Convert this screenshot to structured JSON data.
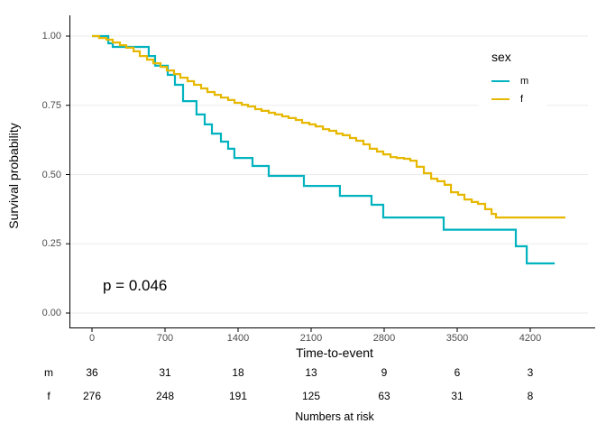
{
  "chart_data": {
    "type": "line",
    "subtype": "kaplan-meier-step-curves",
    "title": "",
    "xlabel": "Time-to-event",
    "ylabel": "Survival probability",
    "p_value_label": "p = 0.046",
    "xlim": [
      -130,
      4800
    ],
    "ylim": [
      0,
      1.0
    ],
    "grid": "horizontal-major-only",
    "gridline_color": "#ebebeb",
    "axis_line_color": "#000000",
    "tick_text_color": "#4d4d4d",
    "x_ticks": [
      {
        "value": 0,
        "label": "0"
      },
      {
        "value": 700,
        "label": "700"
      },
      {
        "value": 1400,
        "label": "1400"
      },
      {
        "value": 2100,
        "label": "2100"
      },
      {
        "value": 2800,
        "label": "2800"
      },
      {
        "value": 3500,
        "label": "3500"
      },
      {
        "value": 4200,
        "label": "4200"
      }
    ],
    "y_ticks": [
      {
        "value": 1.0,
        "label": "1.00"
      },
      {
        "value": 0.75,
        "label": "0.75"
      },
      {
        "value": 0.5,
        "label": "0.50"
      },
      {
        "value": 0.25,
        "label": "0.25"
      },
      {
        "value": 0.0,
        "label": "0.00"
      }
    ],
    "legend": {
      "title": "sex",
      "position": "top-right-inside",
      "items": [
        {
          "label": "m",
          "color": "#00b3bf"
        },
        {
          "label": "f",
          "color": "#e6b800"
        }
      ]
    },
    "series": [
      {
        "name": "m",
        "color": "#00b3bf",
        "steps": [
          [
            0,
            1.0
          ],
          [
            156,
            0.974
          ],
          [
            199,
            0.961
          ],
          [
            544,
            0.928
          ],
          [
            605,
            0.893
          ],
          [
            726,
            0.86
          ],
          [
            795,
            0.824
          ],
          [
            873,
            0.765
          ],
          [
            1002,
            0.717
          ],
          [
            1080,
            0.681
          ],
          [
            1149,
            0.648
          ],
          [
            1236,
            0.619
          ],
          [
            1305,
            0.593
          ],
          [
            1365,
            0.56
          ],
          [
            1538,
            0.531
          ],
          [
            1694,
            0.495
          ],
          [
            2031,
            0.459
          ],
          [
            2376,
            0.423
          ],
          [
            2679,
            0.391
          ],
          [
            2791,
            0.345
          ],
          [
            3370,
            0.301
          ],
          [
            4062,
            0.241
          ],
          [
            4166,
            0.179
          ],
          [
            4434,
            0.179
          ]
        ]
      },
      {
        "name": "f",
        "color": "#e6b800",
        "steps": [
          [
            0,
            1.0
          ],
          [
            69,
            0.993
          ],
          [
            138,
            0.987
          ],
          [
            199,
            0.977
          ],
          [
            268,
            0.967
          ],
          [
            328,
            0.958
          ],
          [
            398,
            0.945
          ],
          [
            458,
            0.928
          ],
          [
            527,
            0.915
          ],
          [
            588,
            0.902
          ],
          [
            657,
            0.889
          ],
          [
            717,
            0.876
          ],
          [
            786,
            0.863
          ],
          [
            847,
            0.85
          ],
          [
            916,
            0.837
          ],
          [
            977,
            0.824
          ],
          [
            1046,
            0.811
          ],
          [
            1106,
            0.798
          ],
          [
            1175,
            0.788
          ],
          [
            1236,
            0.778
          ],
          [
            1305,
            0.769
          ],
          [
            1366,
            0.759
          ],
          [
            1435,
            0.752
          ],
          [
            1495,
            0.746
          ],
          [
            1564,
            0.736
          ],
          [
            1625,
            0.73
          ],
          [
            1694,
            0.723
          ],
          [
            1754,
            0.717
          ],
          [
            1823,
            0.71
          ],
          [
            1884,
            0.704
          ],
          [
            1953,
            0.697
          ],
          [
            2014,
            0.687
          ],
          [
            2083,
            0.681
          ],
          [
            2143,
            0.674
          ],
          [
            2213,
            0.664
          ],
          [
            2273,
            0.658
          ],
          [
            2342,
            0.648
          ],
          [
            2403,
            0.642
          ],
          [
            2472,
            0.632
          ],
          [
            2532,
            0.622
          ],
          [
            2601,
            0.609
          ],
          [
            2662,
            0.593
          ],
          [
            2731,
            0.583
          ],
          [
            2791,
            0.573
          ],
          [
            2861,
            0.563
          ],
          [
            2921,
            0.56
          ],
          [
            2990,
            0.557
          ],
          [
            3051,
            0.55
          ],
          [
            3111,
            0.528
          ],
          [
            3180,
            0.505
          ],
          [
            3250,
            0.485
          ],
          [
            3310,
            0.476
          ],
          [
            3379,
            0.463
          ],
          [
            3440,
            0.436
          ],
          [
            3509,
            0.427
          ],
          [
            3569,
            0.41
          ],
          [
            3639,
            0.401
          ],
          [
            3699,
            0.394
          ],
          [
            3768,
            0.375
          ],
          [
            3829,
            0.358
          ],
          [
            3872,
            0.345
          ],
          [
            4537,
            0.345
          ]
        ]
      }
    ],
    "risk_table": {
      "caption": "Numbers at risk",
      "time_points": [
        0,
        700,
        1400,
        2100,
        2800,
        3500,
        4200
      ],
      "rows": [
        {
          "label": "m",
          "counts": [
            36,
            31,
            18,
            13,
            9,
            6,
            3
          ]
        },
        {
          "label": "f",
          "counts": [
            276,
            248,
            191,
            125,
            63,
            31,
            8
          ]
        }
      ]
    }
  }
}
